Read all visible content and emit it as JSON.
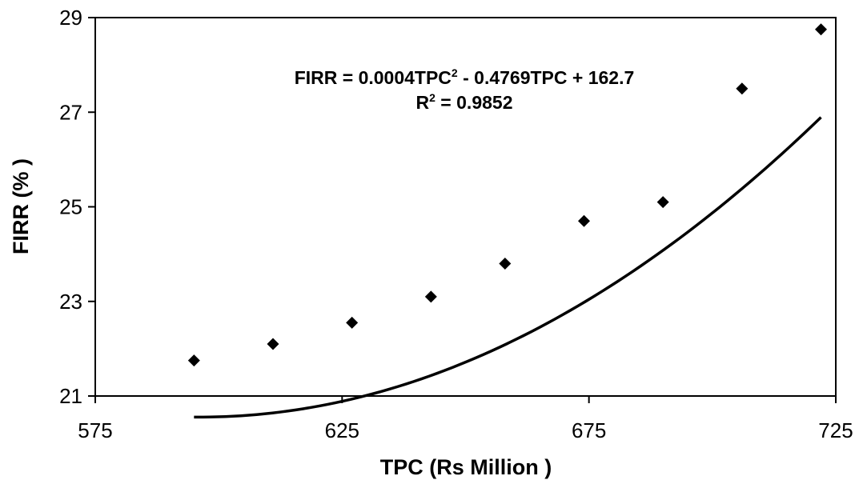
{
  "chart_data": {
    "type": "scatter",
    "xlabel": "TPC (Rs Million )",
    "ylabel": "FIRR (% )",
    "xlim": [
      575,
      725
    ],
    "ylim": [
      21,
      29
    ],
    "x_ticks": [
      "575",
      "625",
      "675",
      "725"
    ],
    "y_ticks": [
      "21",
      "23",
      "25",
      "27",
      "29"
    ],
    "grid": false,
    "legend": "none",
    "series": [
      {
        "points": [
          {
            "x": 595,
            "y": 21.75
          },
          {
            "x": 611,
            "y": 22.1
          },
          {
            "x": 627,
            "y": 22.55
          },
          {
            "x": 643,
            "y": 23.1
          },
          {
            "x": 658,
            "y": 23.8
          },
          {
            "x": 674,
            "y": 24.7
          },
          {
            "x": 690,
            "y": 25.1
          },
          {
            "x": 706,
            "y": 27.5
          },
          {
            "x": 722,
            "y": 28.75
          }
        ],
        "marker": "diamond",
        "color": "#000000"
      }
    ],
    "trendline": {
      "type": "polynomial",
      "x_range": [
        595,
        722
      ],
      "equation_text": {
        "lhs": "FIRR = 0.0004TPC",
        "sup": "2",
        "rhs": " - 0.4769TPC + 162.7"
      },
      "r2_text": {
        "lhs": "R",
        "sup": "2",
        "rhs": " = 0.9852"
      },
      "color": "#000000"
    }
  }
}
